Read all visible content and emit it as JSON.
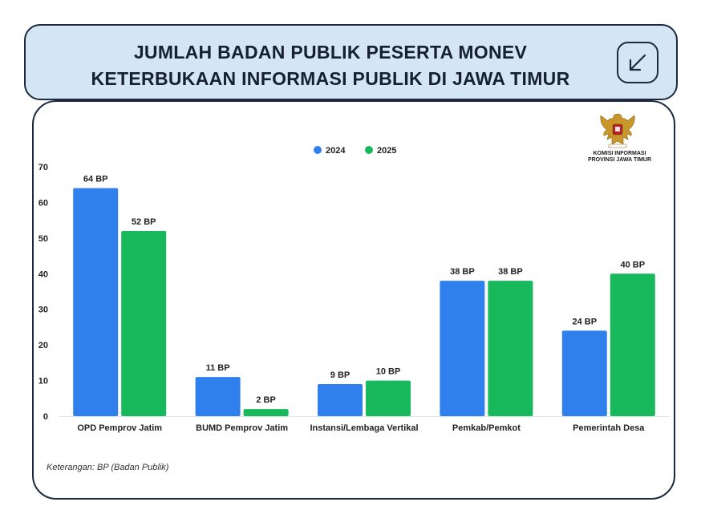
{
  "header": {
    "title_line1": "JUMLAH BADAN PUBLIK PESERTA MONEV",
    "title_line2": "KETERBUKAAN INFORMASI PUBLIK DI JAWA TIMUR",
    "corner_icon": "arrow-down-left-icon"
  },
  "logo": {
    "icon": "garuda-emblem-icon",
    "org_line1": "KOMISI INFORMASI",
    "org_line2": "PROVINSI JAWA TIMUR"
  },
  "footer": {
    "note": "Keterangan: BP (Badan Publik)"
  },
  "colors": {
    "series_2024": "#2f80ed",
    "series_2025": "#18b85c",
    "title_bg": "#d4e6f3",
    "border": "#1b2a3e"
  },
  "chart_data": {
    "type": "bar",
    "categories": [
      "OPD Pemprov Jatim",
      "BUMD Pemprov Jatim",
      "Instansi/Lembaga Vertikal",
      "Pemkab/Pemkot",
      "Pemerintah Desa"
    ],
    "series": [
      {
        "name": "2024",
        "values": [
          64,
          11,
          9,
          38,
          24
        ],
        "labels": [
          "64 BP",
          "11 BP",
          "9 BP",
          "38 BP",
          "24 BP"
        ]
      },
      {
        "name": "2025",
        "values": [
          52,
          2,
          10,
          38,
          40
        ],
        "labels": [
          "52 BP",
          "2 BP",
          "10 BP",
          "38 BP",
          "40 BP"
        ]
      }
    ],
    "yticks": [
      "0",
      "10",
      "20",
      "30",
      "40",
      "50",
      "60",
      "70"
    ],
    "ylim": [
      0,
      70
    ],
    "grid": false,
    "legend": "top-center"
  }
}
